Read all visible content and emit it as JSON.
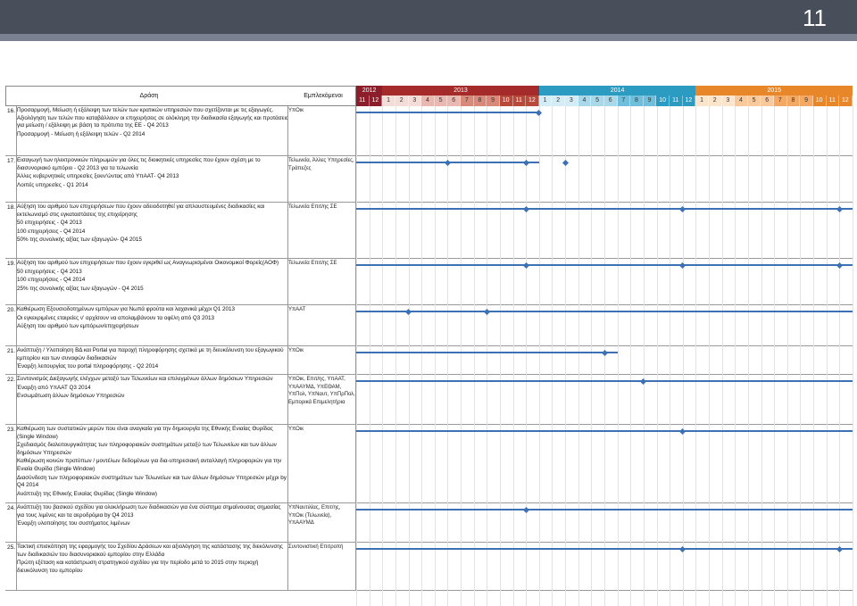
{
  "slide_number": "11",
  "header": {
    "action": "Δράση",
    "actors": "Εμπλεκόμενοι",
    "years": [
      {
        "label": "2012",
        "color": "#8b1e2a",
        "months": 2
      },
      {
        "label": "2013",
        "color": "#a52a2a",
        "months": 12
      },
      {
        "label": "2014",
        "color": "#2b9bc2",
        "months": 12
      },
      {
        "label": "2015",
        "color": "#e8872a",
        "months": 12
      }
    ],
    "months": [
      "11",
      "12",
      "1",
      "2",
      "3",
      "4",
      "5",
      "6",
      "7",
      "8",
      "9",
      "10",
      "11",
      "12",
      "1",
      "2",
      "3",
      "4",
      "5",
      "6",
      "7",
      "8",
      "9",
      "10",
      "11",
      "12",
      "1",
      "2",
      "3",
      "4",
      "5",
      "6",
      "7",
      "8",
      "9",
      "10",
      "11",
      "12"
    ],
    "month_colors": [
      "#8b1e2a",
      "#8b1e2a",
      "#f4dcd8",
      "#f4dcd8",
      "#f4dcd8",
      "#e9b8b0",
      "#e9b8b0",
      "#e9b8b0",
      "#d9897a",
      "#d9897a",
      "#d9897a",
      "#b84a3c",
      "#b84a3c",
      "#b84a3c",
      "#d3ecf6",
      "#d3ecf6",
      "#d3ecf6",
      "#a9d8ea",
      "#a9d8ea",
      "#a9d8ea",
      "#6fbfdc",
      "#6fbfdc",
      "#6fbfdc",
      "#2b9bc2",
      "#2b9bc2",
      "#2b9bc2",
      "#fde5cc",
      "#fde5cc",
      "#fde5cc",
      "#f9c99b",
      "#f9c99b",
      "#f9c99b",
      "#f3a963",
      "#f3a963",
      "#f3a963",
      "#e8872a",
      "#e8872a",
      "#e8872a"
    ]
  },
  "rows": [
    {
      "num": "16.",
      "lines": [
        "Προσαρμογή, Μείωση ή εξάλειψη των τελών των κρατικών υπηρεσιών που σχετίζονται με τις εξαγωγές. Αξιολόγηση των τελών που καταβάλλουν οι επιχειρήσεις σε ολόκληρη την διαδικασία εξαγωγής και προτάσεις για μείωση / εξάλειψη με βάση τα πρότυπα της ΕΕ - Q4 2013",
        "Προσαρμογή - Μείωση ή εξάλειψη τελών - Q2 2014"
      ],
      "actors": "ΥπΟικ",
      "bars": [
        [
          0,
          14
        ]
      ],
      "diamonds": [
        14
      ]
    },
    {
      "num": "17.",
      "lines": [
        "Εισαγωγή των ηλεκτρονικών πληρωμών για όλες τις διοικητικές υπηρεσίες που έχουν σχέση με το διασυνοριακό εμπόριο - Q2 2013 για τα τελωνεία",
        "Άλλες κυβερνητικές υπηρεσίες ξεκιν'ώντας από ΥπΑΑΤ- Q4 2013",
        "Λοιπές υπηρεσίες - Q1 2014"
      ],
      "actors": "Τελωνεία, Άλλες Υπηρεσίες, Τράπεζες",
      "bars": [
        [
          0,
          14
        ]
      ],
      "diamonds": [
        7,
        13,
        16
      ]
    },
    {
      "num": "18.",
      "lines": [
        "Αύξηση του αριθμού των επιχειρήσεων που έχουν αδειοδοτηθεί για απλουστευμένες διαδικασίες και εκτελωνισμό στις εγκαταστάσεις της επιχείρησης",
        "50 επιχειρήσεις - Q4 2013",
        "100 επιχειρήσεις - Q4 2014",
        "50% της συνολικής αξίας των εξαγωγών- Q4 2015"
      ],
      "actors": "Τελωνεία Επιτ/ης ΣΕ",
      "bars": [
        [
          0,
          38
        ]
      ],
      "diamonds": [
        13,
        25,
        37
      ]
    },
    {
      "num": "19.",
      "lines": [
        "Αύξηση του αριθμού των επιχειρήσεων που έχουν εγκριθεί ως Αναγνωρισμένοι Οικονομικοί Φορείς(ΑΟΦ)",
        "50 επιχειρήσεις - Q4 2013",
        "100 επιχειρήσεις - Q4 2014",
        "25% της συνολικής αξίας των εξαγωγών - Q4 2015"
      ],
      "actors": "Τελωνεία Επιτ/ης ΣΕ",
      "bars": [
        [
          0,
          38
        ]
      ],
      "diamonds": [
        13,
        25,
        37
      ]
    },
    {
      "num": "20.",
      "lines": [
        "Καθιέρωση Εξουσιοδοτημένων εμπόρων για Νωπά φρούτα και λαχανικά μέχρι Q1 2013",
        "Οι εγκεκριμένες εταιρείες ν' αρχίσουν να απολαμβάνουν τα οφέλη από Q3 2013",
        "Αύξηση του αριθμού των εμπόρων/επιχειρήσεων"
      ],
      "actors": "ΥπΑΑΤ",
      "bars": [
        [
          0,
          38
        ]
      ],
      "diamonds": [
        4,
        10
      ]
    },
    {
      "num": "21.",
      "lines": [
        "Ανάπτυξη / Υλοποίηση ΒΔ και Portal για παροχή πληροφόρησης σχετικά με τη διευκόλυνση του εξαγωγικού εμπορίου και των συναφών διαδικασιών",
        "Έναρξη λειτουργίας του portal πληροφόρησης - Q2 2014"
      ],
      "actors": "ΥπΟικ",
      "bars": [
        [
          0,
          20
        ]
      ],
      "diamonds": [
        19
      ]
    },
    {
      "num": "22.",
      "lines": [
        "Συντονισμός Διεξαγωγής ελέγχων μεταξύ των Τελωνείων και επιλεγμένων άλλων δημόσιων Υπηρεσιών",
        "Έναρξη από ΥπΑΑΤ Q3 2014",
        "Ενσωμάτωση άλλων δημόσιων Υπηρεσιών"
      ],
      "actors": "ΥπΟικ, Επιτ/ης, ΥπΑΑΤ, ΥπΑΑΥΜΔ, ΥπΕΘΑΜ, ΥπΠολ, ΥπΝαυτ, ΥπΠρΠολ, Εμπορικά Επιμελητήρια",
      "bars": [
        [
          0,
          38
        ]
      ],
      "diamonds": [
        22
      ]
    },
    {
      "num": "23.",
      "lines": [
        "Καθιέρωση των συστατικών μερών που είναι αναγκαία για την δημιουργία της Εθνικής Ενιαίας Θυρίδας (Single Window)",
        "Σχεδιασμός διαλειτουργικότητας των πληροφοριακών συστημάτων μεταξύ των Τελωνείων και των άλλων δημόσιων Υπηρεσιών",
        "Καθιέρωση κοινών προτύπων / μοντέλων δεδομένων για δια-υπηρεσιακή ανταλλαγή πληροφοριών για την Ενιαία Θυρίδα (Single Window)",
        "Διασύνδεση των πληροφοριακών συστημάτων των Τελωνείων και των άλλων δημόσιων Υπηρεσιών μέχρι by Q4 2014",
        "Ανάπτυξη της Εθνικής Ενιαίας Θυρίδας (Single Window)"
      ],
      "actors": "ΥπΟικ",
      "bars": [
        [
          0,
          38
        ]
      ],
      "diamonds": [
        25
      ]
    },
    {
      "num": "24.",
      "lines": [
        "Ανάπτυξη του βασικού σχεδίου για ολοκλήρωση των διαδικασιών για ένα σύστημα σημαίνουσας σημασίας για τους λιμένες και τα αεροδρόμια by Q4 2013",
        "Έναρξη υλοποίησης του συστήματος λιμένων"
      ],
      "actors": "ΥπΝαυτιλίας, Επιτ/ης, ΥπΟικ (Τελωνεία), ΥπΑΑΥΜΔ",
      "bars": [
        [
          0,
          38
        ]
      ],
      "diamonds": [
        13
      ]
    },
    {
      "num": "25.",
      "lines": [
        "Τακτική επισκόπηση της εφαρμογής του Σχεδίου Δράσεων και αξιολόγηση της κατάστασης της διεκόλυνσης των διαδικασιών του διασυνοριακού εμπορίου στην Ελλάδα",
        "Πρώτη εξέταση και κατάστρωση στρατηγικού σχεδίου για την περίοδο μετά το 2015 στην περιοχή διευκόλυνση του εμπορίου"
      ],
      "actors": "Συντονιστική Επιτροπή",
      "bars": [
        [
          0,
          38
        ]
      ],
      "diamonds": [
        25,
        37
      ]
    }
  ]
}
